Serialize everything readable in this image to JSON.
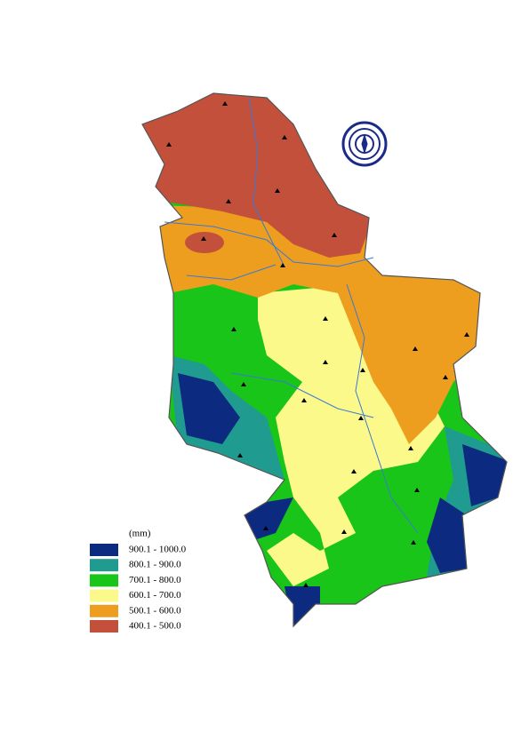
{
  "legend": {
    "title": "(mm)",
    "items": [
      {
        "label": "900.1 - 1000.0",
        "color": "#0c2a80"
      },
      {
        "label": "800.1 - 900.0",
        "color": "#1f9b8f"
      },
      {
        "label": "700.1 - 800.0",
        "color": "#19c519"
      },
      {
        "label": "600.1 - 700.0",
        "color": "#fbf98a"
      },
      {
        "label": "500.1 - 600.0",
        "color": "#ee9e1e"
      },
      {
        "label": "400.1 - 500.0",
        "color": "#c3503a"
      }
    ]
  }
}
